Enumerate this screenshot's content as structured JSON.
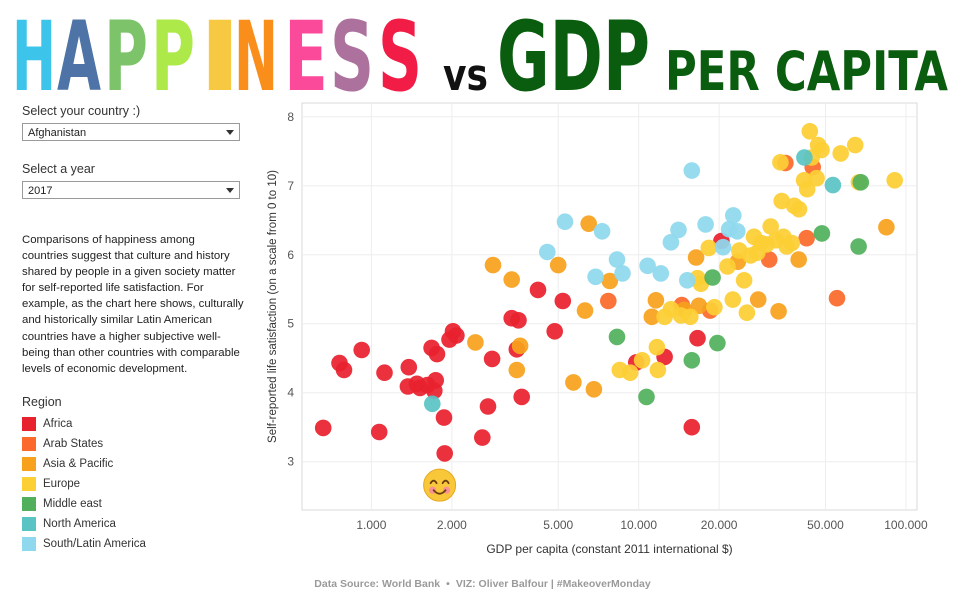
{
  "title": {
    "letters": [
      {
        "ch": "H",
        "color": "#3cc4ea"
      },
      {
        "ch": "A",
        "color": "#4e73a6"
      },
      {
        "ch": "P",
        "color": "#7cc36a"
      },
      {
        "ch": "P",
        "color": "#aee94a"
      },
      {
        "ch": "I",
        "color": "#f7c942"
      },
      {
        "ch": "N",
        "color": "#f98e1b"
      },
      {
        "ch": "E",
        "color": "#fb4a9a"
      },
      {
        "ch": "S",
        "color": "#ac729d"
      },
      {
        "ch": "S",
        "color": "#f21d47"
      }
    ],
    "vs": "vs",
    "gdp": "GDP",
    "per_capita": "PER CAPITA",
    "vs_color": "#111111",
    "gdp_color": "#0a5c0f"
  },
  "controls": {
    "country_label": "Select your country :)",
    "country_value": "Afghanistan",
    "year_label": "Select a year",
    "year_value": "2017"
  },
  "description": "Comparisons of happiness among countries suggest that culture and history shared by people in a given society matter for self-reported life satisfaction. For example, as the chart here shows, culturally and historically similar Latin American countries have a higher subjective well-being than other countries with comparable levels of economic development.",
  "legend": {
    "title": "Region",
    "items": [
      {
        "label": "Africa",
        "color": "#e8212e"
      },
      {
        "label": "Arab States",
        "color": "#fb6a2c"
      },
      {
        "label": "Asia & Pacific",
        "color": "#f8a11c"
      },
      {
        "label": "Europe",
        "color": "#fccf35"
      },
      {
        "label": "Middle east",
        "color": "#52b05c"
      },
      {
        "label": "North America",
        "color": "#5ac4c4"
      },
      {
        "label": "South/Latin America",
        "color": "#8fd8ee"
      }
    ]
  },
  "footer": {
    "source": "Data Source: World Bank",
    "separator": "•",
    "viz": "VIZ: Oliver Balfour | #MakeoverMonday"
  },
  "highlight_icon": "smiley-face-icon",
  "chart_data": {
    "type": "scatter",
    "xlabel": "GDP per capita (constant 2011 international $)",
    "ylabel": "Self-reported life satisfaction (on a scale from 0 to 10)",
    "x_scale": "log",
    "xlim": [
      550,
      110000
    ],
    "ylim": [
      2.3,
      8.2
    ],
    "x_ticks": [
      1000,
      2000,
      5000,
      10000,
      20000,
      50000,
      100000
    ],
    "x_tick_labels": [
      "1.000",
      "2.000",
      "5.000",
      "10.000",
      "20.000",
      "50.000",
      "100.000"
    ],
    "y_ticks": [
      3,
      4,
      5,
      6,
      7,
      8
    ],
    "y_tick_labels": [
      "3",
      "4",
      "5",
      "6",
      "7",
      "8"
    ],
    "grid": true,
    "highlight": {
      "x": 1800,
      "y": 2.66
    },
    "series": [
      {
        "name": "Africa",
        "color": "#e8212e",
        "points": [
          [
            660,
            3.49
          ],
          [
            760,
            4.43
          ],
          [
            790,
            4.33
          ],
          [
            920,
            4.62
          ],
          [
            1070,
            3.43
          ],
          [
            1120,
            4.29
          ],
          [
            1380,
            4.37
          ],
          [
            1370,
            4.09
          ],
          [
            1480,
            4.13
          ],
          [
            1520,
            4.07
          ],
          [
            1620,
            4.11
          ],
          [
            1680,
            4.65
          ],
          [
            1720,
            4.03
          ],
          [
            1740,
            4.18
          ],
          [
            1760,
            4.56
          ],
          [
            1870,
            3.64
          ],
          [
            1880,
            3.12
          ],
          [
            1960,
            4.77
          ],
          [
            2020,
            4.89
          ],
          [
            2080,
            4.83
          ],
          [
            2600,
            3.35
          ],
          [
            2730,
            3.8
          ],
          [
            2830,
            4.49
          ],
          [
            3350,
            5.08
          ],
          [
            3500,
            4.63
          ],
          [
            3550,
            5.05
          ],
          [
            3650,
            3.94
          ],
          [
            4200,
            5.49
          ],
          [
            4850,
            4.89
          ],
          [
            5200,
            5.33
          ],
          [
            9800,
            4.44
          ],
          [
            12500,
            4.52
          ],
          [
            15800,
            3.5
          ],
          [
            16600,
            4.79
          ],
          [
            20400,
            6.2
          ]
        ]
      },
      {
        "name": "Arab States",
        "color": "#fb6a2c",
        "points": [
          [
            7700,
            5.33
          ],
          [
            14500,
            5.27
          ],
          [
            18500,
            5.19
          ],
          [
            30800,
            5.93
          ],
          [
            35400,
            7.33
          ],
          [
            44800,
            7.27
          ],
          [
            42500,
            6.24
          ],
          [
            55200,
            5.37
          ]
        ]
      },
      {
        "name": "Asia & Pacific",
        "color": "#f8a11c",
        "points": [
          [
            2450,
            4.73
          ],
          [
            2850,
            5.85
          ],
          [
            3350,
            5.64
          ],
          [
            3500,
            4.33
          ],
          [
            3600,
            4.68
          ],
          [
            5000,
            5.85
          ],
          [
            5700,
            4.15
          ],
          [
            6300,
            5.19
          ],
          [
            6500,
            6.45
          ],
          [
            6800,
            4.05
          ],
          [
            7800,
            5.62
          ],
          [
            11200,
            5.1
          ],
          [
            11600,
            5.34
          ],
          [
            14800,
            5.2
          ],
          [
            16400,
            5.96
          ],
          [
            16800,
            5.26
          ],
          [
            23500,
            5.9
          ],
          [
            28000,
            5.35
          ],
          [
            33400,
            5.18
          ],
          [
            39700,
            5.93
          ],
          [
            84500,
            6.4
          ]
        ]
      },
      {
        "name": "Europe",
        "color": "#fccf35",
        "points": [
          [
            8500,
            4.33
          ],
          [
            9300,
            4.29
          ],
          [
            10300,
            4.47
          ],
          [
            11700,
            4.66
          ],
          [
            11800,
            4.33
          ],
          [
            12500,
            5.1
          ],
          [
            13200,
            5.21
          ],
          [
            14400,
            5.12
          ],
          [
            15600,
            5.1
          ],
          [
            16600,
            5.66
          ],
          [
            17100,
            5.58
          ],
          [
            18300,
            6.1
          ],
          [
            19200,
            5.24
          ],
          [
            21500,
            5.83
          ],
          [
            22500,
            5.35
          ],
          [
            23800,
            6.06
          ],
          [
            24800,
            5.63
          ],
          [
            25400,
            5.16
          ],
          [
            26200,
            5.99
          ],
          [
            27000,
            6.26
          ],
          [
            27800,
            6.03
          ],
          [
            28700,
            6.17
          ],
          [
            30100,
            6.15
          ],
          [
            31200,
            6.41
          ],
          [
            32600,
            6.21
          ],
          [
            33900,
            7.34
          ],
          [
            34300,
            6.78
          ],
          [
            34800,
            6.26
          ],
          [
            35800,
            6.12
          ],
          [
            37400,
            6.17
          ],
          [
            38200,
            6.71
          ],
          [
            39800,
            6.66
          ],
          [
            41600,
            7.08
          ],
          [
            42700,
            6.95
          ],
          [
            43700,
            7.79
          ],
          [
            44400,
            7.41
          ],
          [
            46300,
            7.11
          ],
          [
            46900,
            7.59
          ],
          [
            48300,
            7.52
          ],
          [
            57000,
            7.47
          ],
          [
            64600,
            7.59
          ],
          [
            66700,
            7.05
          ],
          [
            90800,
            7.08
          ]
        ]
      },
      {
        "name": "Middle east",
        "color": "#52b05c",
        "points": [
          [
            8300,
            4.81
          ],
          [
            10700,
            3.94
          ],
          [
            15800,
            4.47
          ],
          [
            18900,
            5.67
          ],
          [
            19700,
            4.72
          ],
          [
            48500,
            6.31
          ],
          [
            66500,
            6.12
          ],
          [
            67800,
            7.05
          ]
        ]
      },
      {
        "name": "North America",
        "color": "#5ac4c4",
        "points": [
          [
            1690,
            3.84
          ],
          [
            41700,
            7.41
          ],
          [
            53300,
            7.01
          ]
        ]
      },
      {
        "name": "South/Latin America",
        "color": "#8fd8ee",
        "points": [
          [
            4550,
            6.04
          ],
          [
            5300,
            6.48
          ],
          [
            6900,
            5.68
          ],
          [
            7300,
            6.34
          ],
          [
            8300,
            5.93
          ],
          [
            8700,
            5.73
          ],
          [
            10800,
            5.84
          ],
          [
            12100,
            5.73
          ],
          [
            13200,
            6.18
          ],
          [
            14100,
            6.36
          ],
          [
            15200,
            5.63
          ],
          [
            15800,
            7.22
          ],
          [
            17800,
            6.44
          ],
          [
            20700,
            6.11
          ],
          [
            21800,
            6.37
          ],
          [
            22600,
            6.57
          ],
          [
            23400,
            6.34
          ]
        ]
      }
    ]
  }
}
